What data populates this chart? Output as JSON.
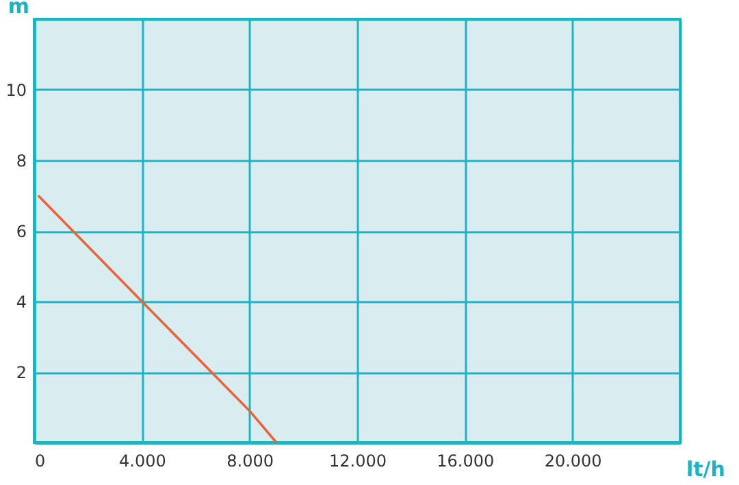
{
  "chart_data": {
    "type": "line",
    "xlabel": "lt/h",
    "ylabel": "m",
    "x": [
      150,
      4000,
      8000,
      9000
    ],
    "series": [
      {
        "color": "#e8643c",
        "values": [
          7,
          4,
          0.9,
          0
        ]
      }
    ],
    "xlim": [
      0,
      24000
    ],
    "ylim": [
      0,
      12
    ],
    "xticks": [
      0,
      {
        "value": 4000,
        "label": "4.000"
      },
      {
        "value": 8000,
        "label": "8.000"
      },
      {
        "value": 12000,
        "label": "12.000"
      },
      {
        "value": 16000,
        "label": "16.000"
      },
      {
        "value": 20000,
        "label": "20.000"
      },
      {
        "value": 24000,
        "label": null
      }
    ],
    "yticks": [
      2,
      4,
      6,
      8,
      10,
      {
        "value": 12,
        "label": null
      }
    ],
    "grid": true
  }
}
